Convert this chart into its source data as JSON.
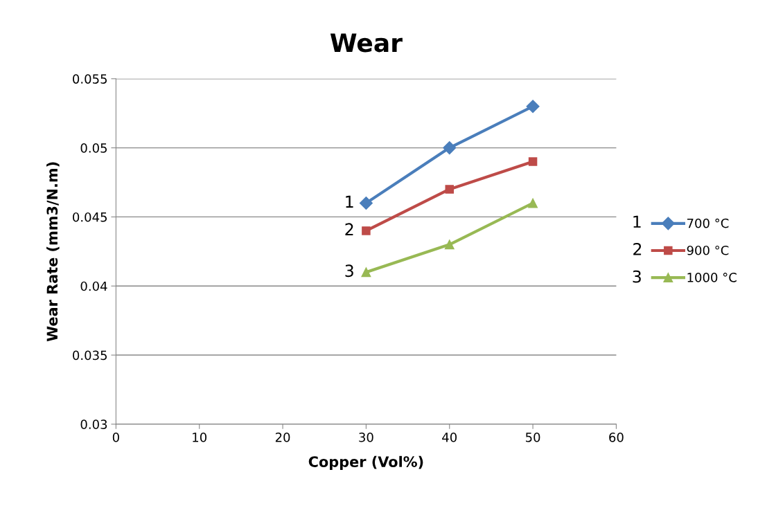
{
  "chart_data": {
    "type": "line",
    "title": "Wear",
    "xlabel": "Copper (Vol%)",
    "ylabel": "Wear Rate (mm3/N.m)",
    "x": [
      30,
      40,
      50
    ],
    "series": [
      {
        "name": "700 °C",
        "color": "#4a7ebb",
        "marker": "diamond",
        "values": [
          0.046,
          0.05,
          0.053
        ]
      },
      {
        "name": "900 °C",
        "color": "#be4b48",
        "marker": "square",
        "values": [
          0.044,
          0.047,
          0.049
        ]
      },
      {
        "name": "1000 °C",
        "color": "#98b954",
        "marker": "triangle",
        "values": [
          0.041,
          0.043,
          0.046
        ]
      }
    ],
    "xlim": [
      0,
      60
    ],
    "xticks": [
      0,
      10,
      20,
      30,
      40,
      50,
      60
    ],
    "ylim": [
      0.03,
      0.055
    ],
    "yticks": [
      0.03,
      0.035,
      0.04,
      0.045,
      0.05,
      0.055
    ],
    "grid": "y",
    "legend": "right",
    "line_style": "solid",
    "annotations": [
      "1",
      "2",
      "3",
      "1",
      "2",
      "3"
    ]
  }
}
